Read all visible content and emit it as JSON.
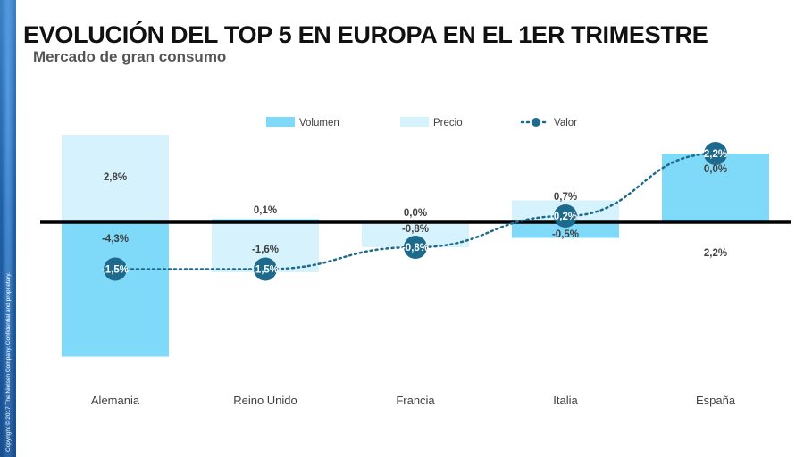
{
  "header": {
    "title": "EVOLUCIÓN DEL TOP 5 EN EUROPA EN EL 1ER TRIMESTRE",
    "subtitle": "Mercado de gran consumo"
  },
  "copyright": "Copyright © 2017 The Nielsen Company. Confidential and proprietary.",
  "colors": {
    "volumen": "#7fd9f9",
    "precio": "#d6f2fc",
    "valor": "#1e6a8c",
    "axis": "#000000",
    "sidebar": "#2a6db5"
  },
  "chart_data": {
    "type": "bar",
    "title": "",
    "xlabel": "",
    "ylabel": "",
    "ylim": [
      -4.5,
      3.0
    ],
    "grid": false,
    "legend_position": "top",
    "categories": [
      "Alemania",
      "Reino Unido",
      "Francia",
      "Italia",
      "España"
    ],
    "series": [
      {
        "name": "Volumen",
        "kind": "bar",
        "values": [
          -4.3,
          0.1,
          0.0,
          -0.5,
          2.2
        ],
        "labels": [
          "-4,3%",
          "0,1%",
          "0,0%",
          "-0,5%",
          "2,2%"
        ]
      },
      {
        "name": "Precio",
        "kind": "bar",
        "values": [
          2.8,
          -1.6,
          -0.8,
          0.7,
          0.0
        ],
        "labels": [
          "2,8%",
          "-1,6%",
          "-0,8%",
          "0,7%",
          "0,0%"
        ]
      },
      {
        "name": "Valor",
        "kind": "line",
        "style": "dotted",
        "values": [
          -1.5,
          -1.5,
          -0.8,
          0.2,
          2.2
        ],
        "labels": [
          "-1,5%",
          "-1,5%",
          "-0,8%",
          "0,2%",
          "2,2%"
        ]
      }
    ]
  }
}
